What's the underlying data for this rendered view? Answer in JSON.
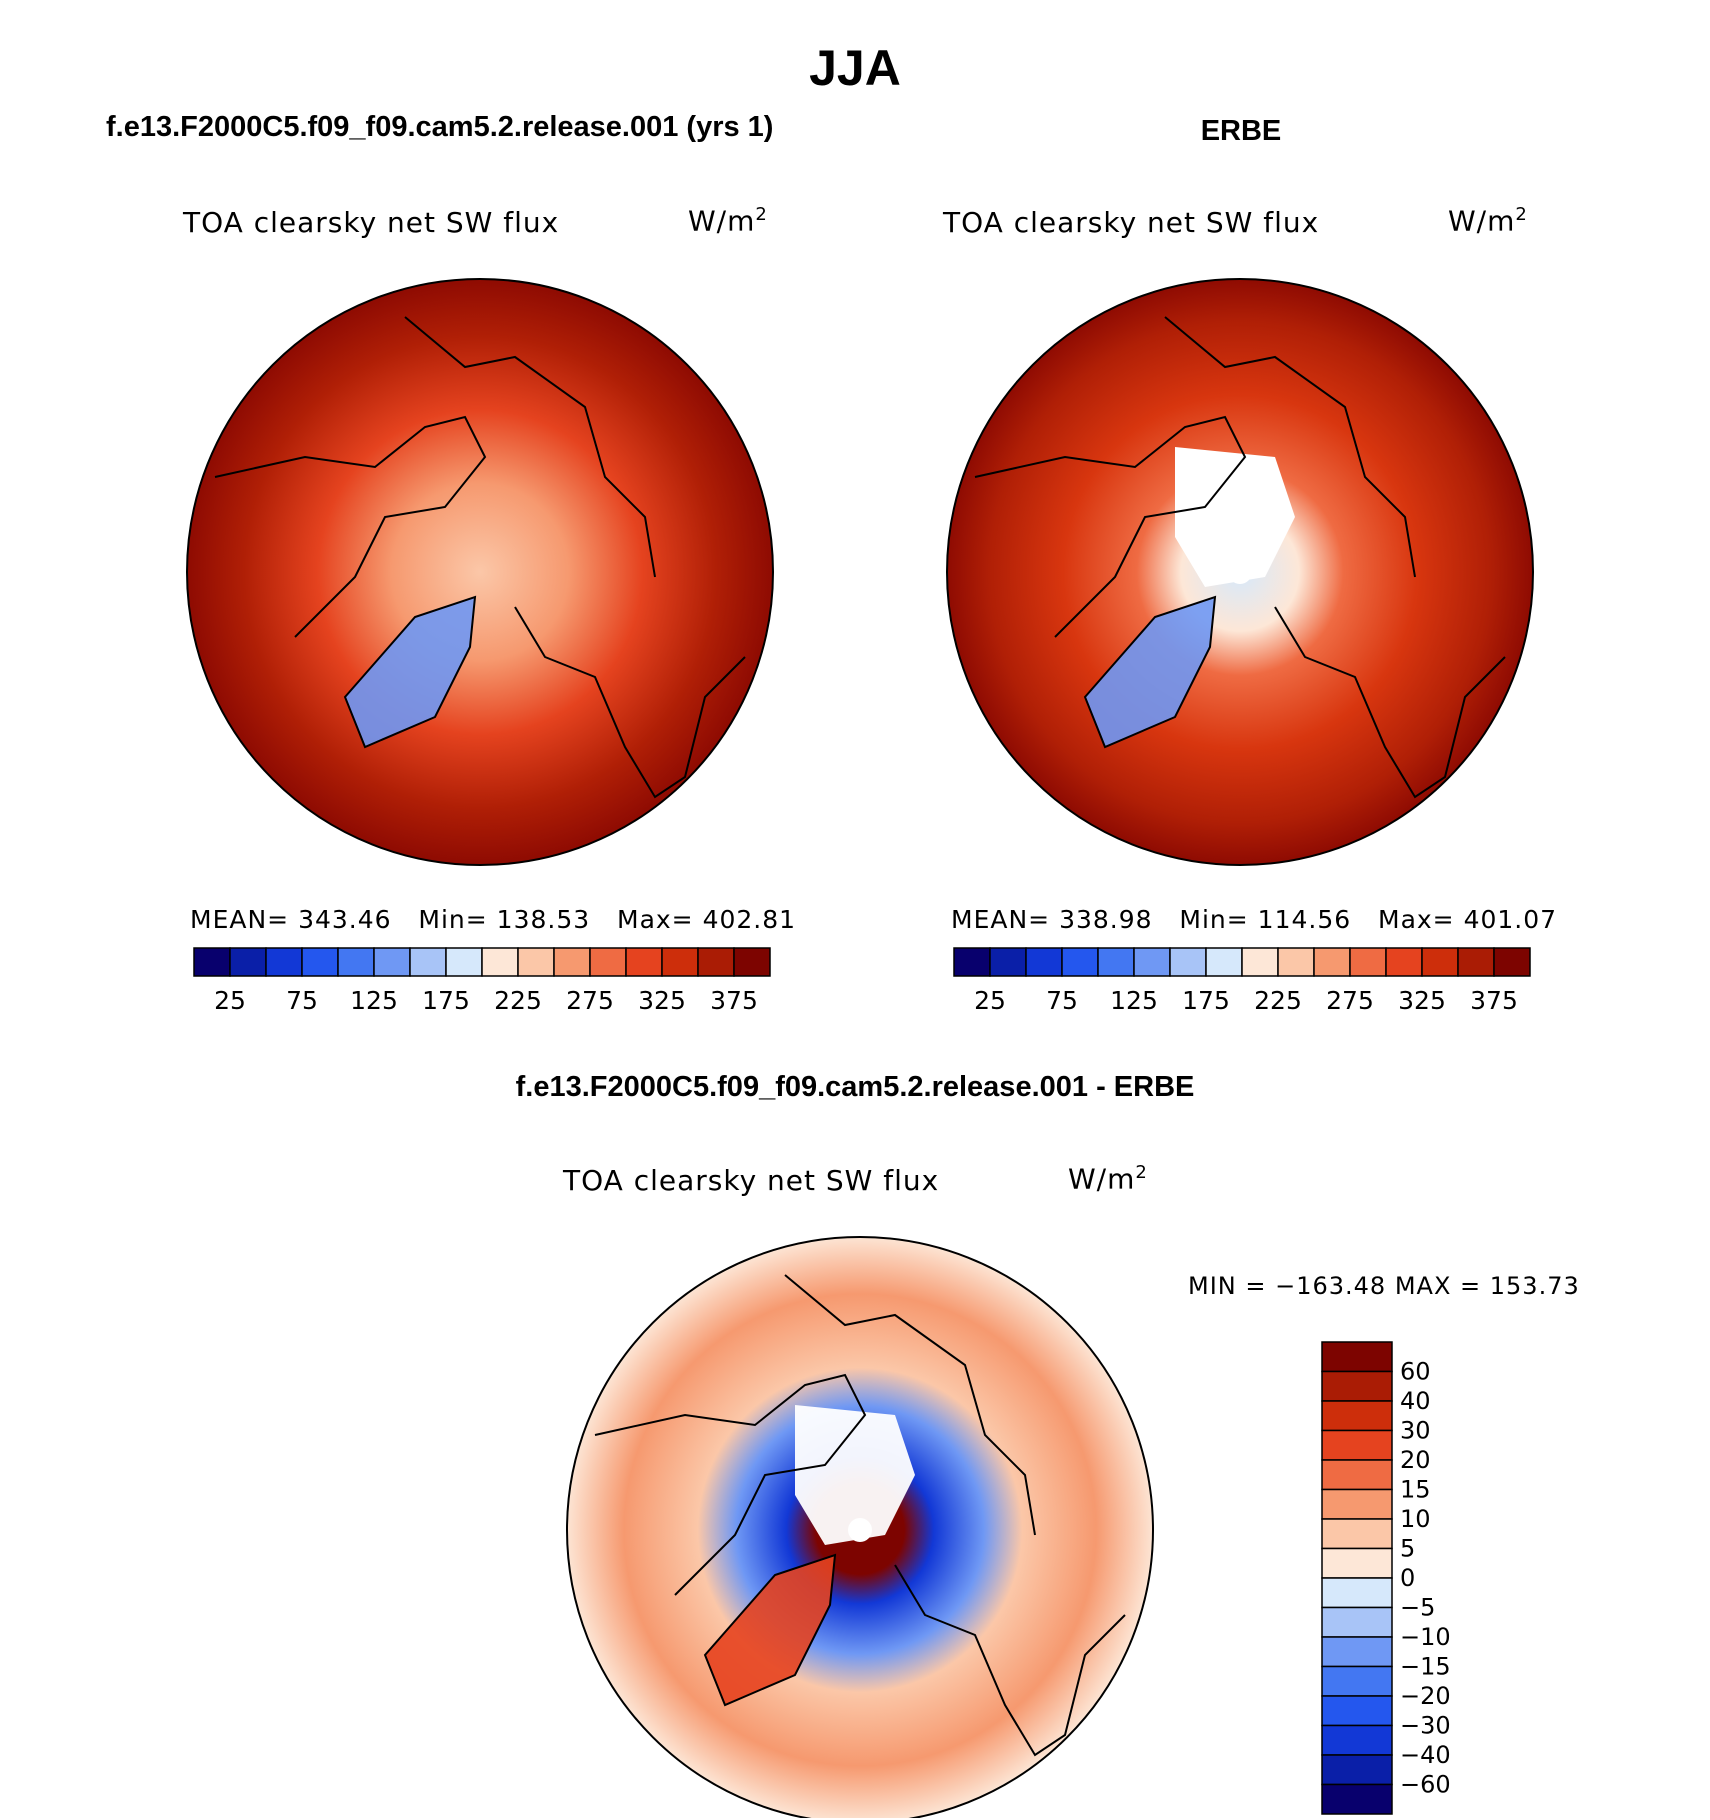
{
  "page": {
    "title": "JJA",
    "case_title": "f.e13.F2000C5.f09_f09.cam5.2.release.001 (yrs 1)",
    "obs_title": "ERBE",
    "diff_title": "f.e13.F2000C5.f09_f09.cam5.2.release.001 - ERBE"
  },
  "colors": {
    "abs_scale": [
      "#08006d",
      "#0a1fa8",
      "#1238d6",
      "#2457ee",
      "#4377f2",
      "#6f98f4",
      "#a8c4f7",
      "#d6e8fb",
      "#fde7d7",
      "#fbc7a8",
      "#f6996f",
      "#ef6b43",
      "#e5431f",
      "#cd2e0b",
      "#aa1c05",
      "#7d0400"
    ],
    "diff_scale": [
      "#08006d",
      "#0a1fa8",
      "#1238d6",
      "#2457ee",
      "#4377f2",
      "#6f98f4",
      "#a8c4f7",
      "#d6e8fb",
      "#fde7d7",
      "#fbc7a8",
      "#f6996f",
      "#ef6b43",
      "#e5431f",
      "#cd2e0b",
      "#aa1c05",
      "#7d0400"
    ],
    "coastline": "#000000"
  },
  "chart_data": [
    {
      "type": "heatmap",
      "projection": "polar stereographic (North Pole)",
      "variable": "TOA clearsky net SW flux",
      "units": "W/m",
      "units_exponent": "2",
      "stats": {
        "mean_label": "MEAN=",
        "mean": "343.46",
        "min_label": "Min=",
        "min": "138.53",
        "max_label": "Max=",
        "max": "402.81"
      },
      "colorbar_levels": [
        "25",
        "75",
        "125",
        "175",
        "225",
        "275",
        "325",
        "375"
      ]
    },
    {
      "type": "heatmap",
      "projection": "polar stereographic (North Pole)",
      "variable": "TOA clearsky net SW flux",
      "units": "W/m",
      "units_exponent": "2",
      "stats": {
        "mean_label": "MEAN=",
        "mean": "338.98",
        "min_label": "Min=",
        "min": "114.56",
        "max_label": "Max=",
        "max": "401.07"
      },
      "colorbar_levels": [
        "25",
        "75",
        "125",
        "175",
        "225",
        "275",
        "325",
        "375"
      ]
    },
    {
      "type": "heatmap",
      "projection": "polar stereographic (North Pole)",
      "variable": "TOA clearsky net SW flux",
      "units": "W/m",
      "units_exponent": "2",
      "range_text": "MIN = −163.48 MAX = 153.73",
      "colorbar_levels": [
        "60",
        "40",
        "30",
        "20",
        "15",
        "10",
        "5",
        "0",
        "−5",
        "−10",
        "−15",
        "−20",
        "−30",
        "−40",
        "−60"
      ]
    }
  ]
}
